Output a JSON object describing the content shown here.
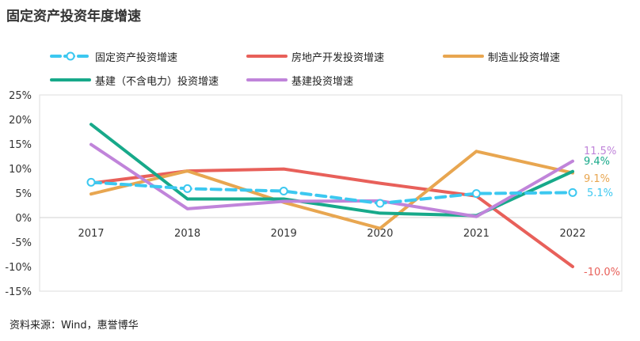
{
  "chart_data": {
    "type": "line",
    "title": "固定资产投资年度增速",
    "x": [
      "2017",
      "2018",
      "2019",
      "2020",
      "2021",
      "2022"
    ],
    "yticks": [
      "25%",
      "20%",
      "15%",
      "10%",
      "5%",
      "0%",
      "-5%",
      "-10%",
      "-15%"
    ],
    "ylim": [
      -15,
      25
    ],
    "grid": false,
    "legend_position": "top",
    "series": [
      {
        "name": "固定资产投资增速",
        "values": [
          7.2,
          5.9,
          5.4,
          2.9,
          4.9,
          5.1
        ],
        "color": "#3CC8F0",
        "dashed": true,
        "markers": true,
        "end_label": "5.1%"
      },
      {
        "name": "房地产开发投资增速",
        "values": [
          7.0,
          9.5,
          9.9,
          7.0,
          4.4,
          -10.0
        ],
        "color": "#E8605A",
        "dashed": false,
        "markers": false,
        "end_label": "-10.0%"
      },
      {
        "name": "制造业投资增速",
        "values": [
          4.8,
          9.5,
          3.1,
          -2.2,
          13.5,
          9.1
        ],
        "color": "#E8A650",
        "dashed": false,
        "markers": false,
        "end_label": "9.1%"
      },
      {
        "name": "基建（不含电力）投资增速",
        "values": [
          19.0,
          3.8,
          3.8,
          0.9,
          0.4,
          9.4
        ],
        "color": "#17A98A",
        "dashed": false,
        "markers": false,
        "end_label": "9.4%"
      },
      {
        "name": "基建投资增速",
        "values": [
          14.9,
          1.8,
          3.3,
          3.4,
          0.2,
          11.5
        ],
        "color": "#C084DA",
        "dashed": false,
        "markers": false,
        "end_label": "11.5%"
      }
    ]
  },
  "source": "资料来源：Wind，惠誉博华"
}
